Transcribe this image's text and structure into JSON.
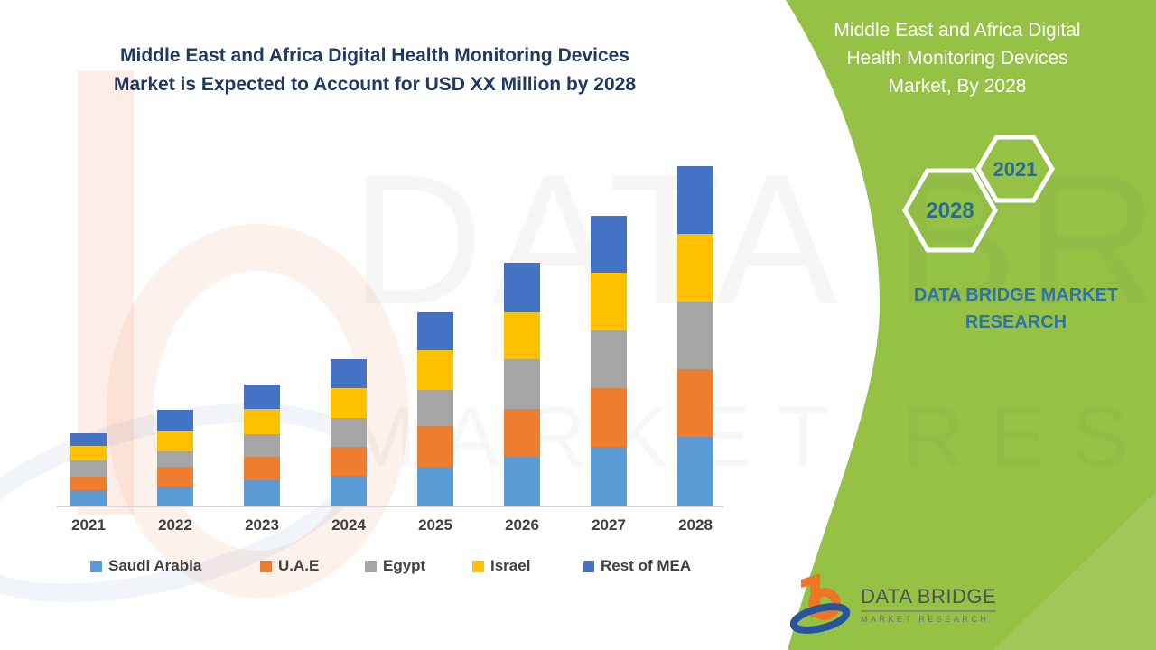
{
  "page": {
    "background": "#ffffff",
    "accent_green": "#95C245",
    "title_color": "#1F3864"
  },
  "left_title": {
    "line1": "Middle East and Africa Digital Health Monitoring Devices",
    "line2": "Market is Expected to Account for USD XX Million by 2028"
  },
  "right_panel": {
    "title_lines": [
      "Middle East and Africa Digital",
      "Health Monitoring Devices",
      "Market, By 2028"
    ],
    "hexagons": [
      {
        "label": "2021"
      },
      {
        "label": "2028"
      }
    ],
    "brand_line1": "DATA BRIDGE MARKET",
    "brand_line2": "RESEARCH"
  },
  "watermark": {
    "line1": "DATA BRIDGE",
    "line2": "MARKET RESEARCH"
  },
  "logo": {
    "name": "DATA BRIDGE",
    "subname": "MARKET  RESEARCH"
  },
  "chart_data": {
    "type": "bar",
    "stacked": true,
    "title": "Middle East and Africa Digital Health Monitoring Devices Market is Expected to Account for USD XX Million by 2028",
    "xlabel": "",
    "ylabel": "",
    "value_axis_visible": false,
    "units_note": "values estimated in relative units; chart labels values only as USD XX Million",
    "legend_position": "bottom",
    "grid": false,
    "categories": [
      "2021",
      "2022",
      "2023",
      "2024",
      "2025",
      "2026",
      "2027",
      "2028"
    ],
    "series": [
      {
        "name": "Saudi Arabia",
        "color": "#5B9BD5",
        "values": [
          17,
          21,
          28,
          33,
          43,
          54,
          65,
          76
        ]
      },
      {
        "name": "U.A.E",
        "color": "#ED7D31",
        "values": [
          15,
          22,
          26,
          32,
          45,
          53,
          65,
          75
        ]
      },
      {
        "name": "Egypt",
        "color": "#A5A5A5",
        "values": [
          18,
          17,
          25,
          32,
          40,
          55,
          64,
          75
        ]
      },
      {
        "name": "Israel",
        "color": "#FFC000",
        "values": [
          16,
          23,
          28,
          33,
          44,
          52,
          64,
          75
        ]
      },
      {
        "name": "Rest of MEA",
        "color": "#4472C4",
        "values": [
          14,
          23,
          27,
          32,
          42,
          55,
          63,
          75
        ]
      }
    ],
    "stack_order_bottom_to_top": [
      "Saudi Arabia",
      "U.A.E",
      "Egypt",
      "Israel",
      "Rest of MEA"
    ],
    "totals": [
      80,
      106,
      134,
      162,
      214,
      269,
      321,
      376
    ]
  }
}
